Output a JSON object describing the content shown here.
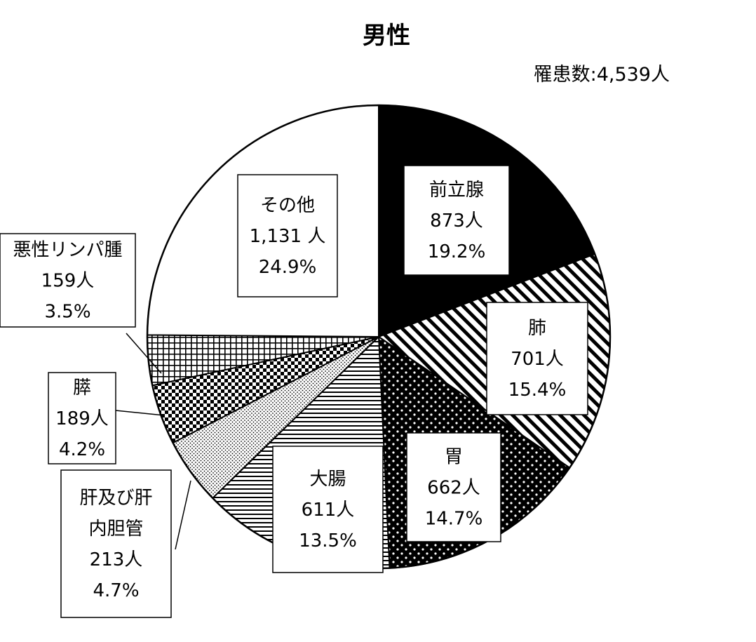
{
  "chart_data": {
    "type": "pie",
    "title": "男性",
    "total_label": "罹患数:4,539人",
    "slices": [
      {
        "name": "前立腺",
        "count": "873人",
        "percent": "19.2%",
        "value": 19.2,
        "pattern": "solid-black"
      },
      {
        "name": "肺",
        "count": "701人",
        "percent": "15.4%",
        "value": 15.4,
        "pattern": "diagonal-hatch"
      },
      {
        "name": "胃",
        "count": "662人",
        "percent": "14.7%",
        "value": 14.7,
        "pattern": "dotted-dark"
      },
      {
        "name": "大腸",
        "count": "611人",
        "percent": "13.5%",
        "value": 13.5,
        "pattern": "horizontal-lines"
      },
      {
        "name": "肝及び肝内胆管",
        "name_lines": [
          "肝及び肝",
          "内胆管"
        ],
        "count": "213人",
        "percent": "4.7%",
        "value": 4.7,
        "pattern": "fine-dots"
      },
      {
        "name": "膵",
        "count": "189人",
        "percent": "4.2%",
        "value": 4.2,
        "pattern": "checkerboard"
      },
      {
        "name": "悪性リンパ腫",
        "count": "159人",
        "percent": "3.5%",
        "value": 3.5,
        "pattern": "grid"
      },
      {
        "name": "その他",
        "count": "1,131 人",
        "percent": "24.9%",
        "value": 24.9,
        "pattern": "white"
      }
    ],
    "start_angle": "12 o'clock",
    "direction": "clockwise",
    "legend": "none"
  }
}
